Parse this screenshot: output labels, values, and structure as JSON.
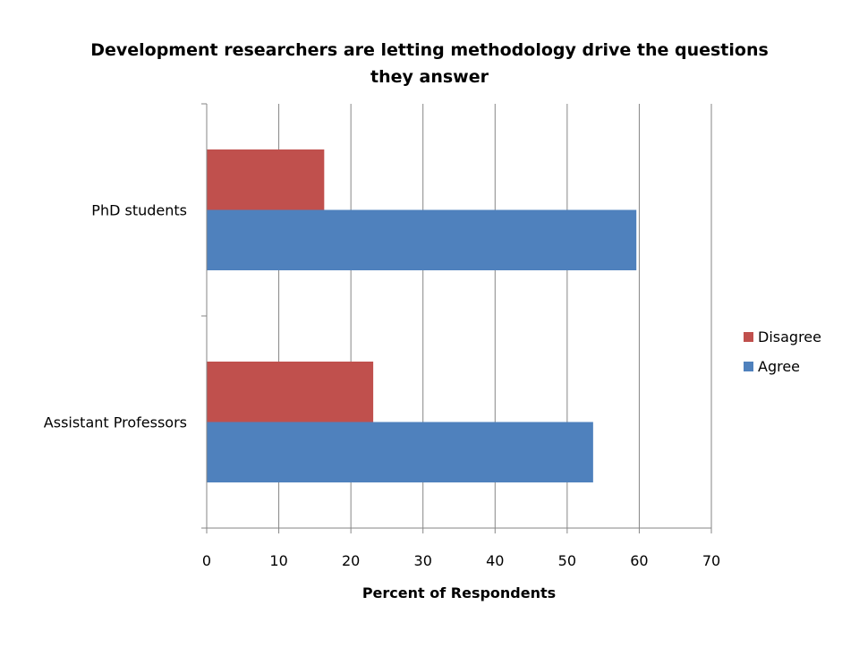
{
  "chart_data": {
    "type": "bar",
    "orientation": "horizontal",
    "title_lines": [
      "Development researchers are letting methodology drive the questions",
      "they answer"
    ],
    "xlabel": "Percent of Respondents",
    "ylabel": "",
    "xlim": [
      0,
      70
    ],
    "xticks": [
      0,
      10,
      20,
      30,
      40,
      50,
      60,
      70
    ],
    "grid": "vertical",
    "legend_position": "right",
    "categories": [
      "Assistant Professors",
      "PhD students"
    ],
    "series": [
      {
        "name": "Agree",
        "color": "#4f81bd",
        "values": [
          53.6,
          59.6
        ]
      },
      {
        "name": "Disagree",
        "color": "#c0504d",
        "values": [
          23.1,
          16.3
        ]
      }
    ],
    "legend_order": [
      "Disagree",
      "Agree"
    ]
  }
}
